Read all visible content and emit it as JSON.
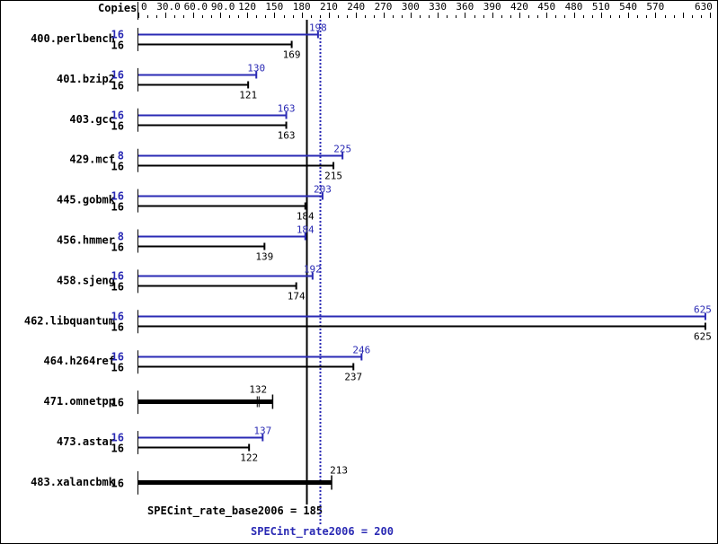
{
  "chart_data": {
    "type": "bar",
    "orientation": "horizontal",
    "xlabel": "Copies",
    "xlim": [
      0,
      630
    ],
    "ticks": [
      "0",
      "30.0",
      "60.0",
      "90.0",
      "120",
      "150",
      "180",
      "210",
      "240",
      "270",
      "300",
      "330",
      "360",
      "390",
      "420",
      "450",
      "480",
      "510",
      "540",
      "570",
      "630"
    ],
    "tick_values": [
      0,
      30,
      60,
      90,
      120,
      150,
      180,
      210,
      240,
      270,
      300,
      330,
      360,
      390,
      420,
      450,
      480,
      510,
      540,
      570,
      630
    ],
    "colors": {
      "peak": "#2a2ab4",
      "base": "#000000"
    },
    "benchmarks": [
      {
        "name": "400.perlbench",
        "peak_copies": "16",
        "peak": 198,
        "base_copies": "16",
        "base": 169
      },
      {
        "name": "401.bzip2",
        "peak_copies": "16",
        "peak": 130,
        "base_copies": "16",
        "base": 121
      },
      {
        "name": "403.gcc",
        "peak_copies": "16",
        "peak": 163,
        "base_copies": "16",
        "base": 163
      },
      {
        "name": "429.mcf",
        "peak_copies": "8",
        "peak": 225,
        "base_copies": "16",
        "base": 215
      },
      {
        "name": "445.gobmk",
        "peak_copies": "16",
        "peak": 203,
        "base_copies": "16",
        "base": 184
      },
      {
        "name": "456.hmmer",
        "peak_copies": "8",
        "peak": 184,
        "base_copies": "16",
        "base": 139
      },
      {
        "name": "458.sjeng",
        "peak_copies": "16",
        "peak": 192,
        "base_copies": "16",
        "base": 174
      },
      {
        "name": "462.libquantum",
        "peak_copies": "16",
        "peak": 625,
        "base_copies": "16",
        "base": 625
      },
      {
        "name": "464.h264ref",
        "peak_copies": "16",
        "peak": 246,
        "base_copies": "16",
        "base": 237
      },
      {
        "name": "471.omnetpp",
        "peak_copies": null,
        "peak": null,
        "base_copies": "16",
        "base": 132,
        "combined_max": 148
      },
      {
        "name": "473.astar",
        "peak_copies": "16",
        "peak": 137,
        "base_copies": "16",
        "base": 122
      },
      {
        "name": "483.xalancbmk",
        "peak_copies": null,
        "peak": null,
        "base_copies": "16",
        "base": 213
      }
    ],
    "base_label": "SPECint_rate_base2006 = 185",
    "base_value": 185,
    "peak_label": "SPECint_rate2006 = 200",
    "peak_value": 200
  }
}
